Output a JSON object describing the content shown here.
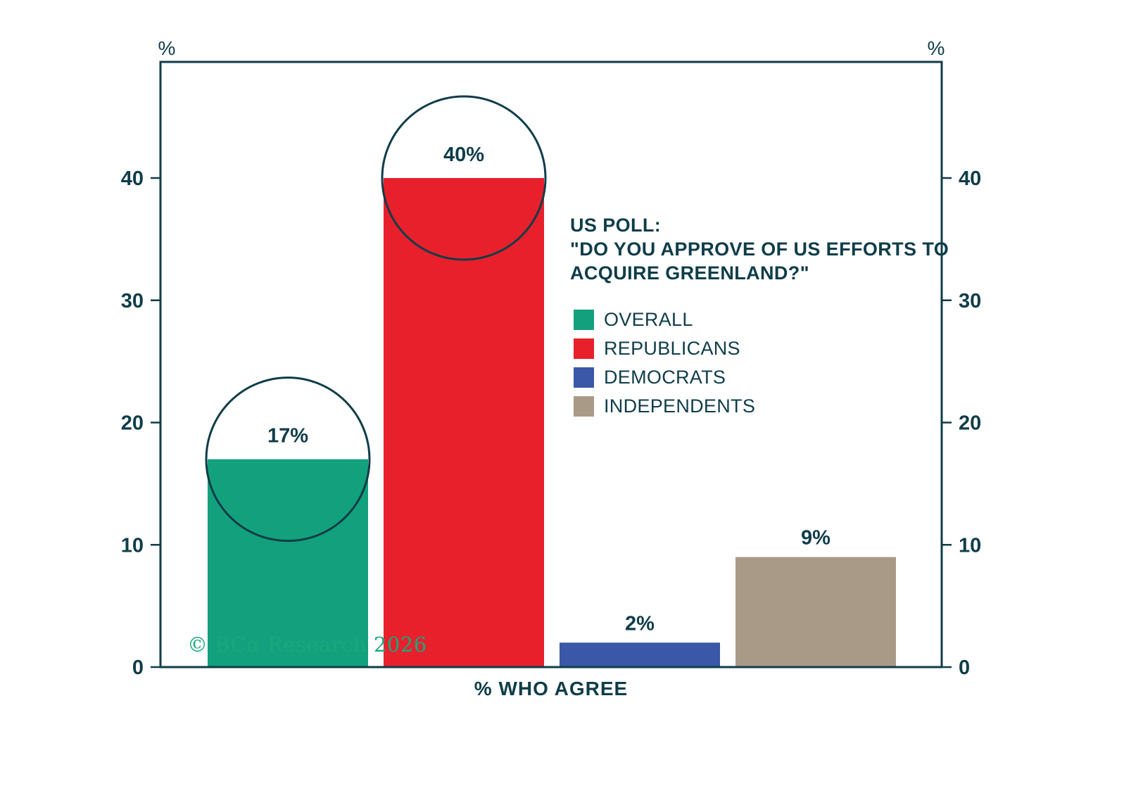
{
  "chart_data": {
    "type": "bar",
    "title_lines": [
      "US POLL:",
      "\"DO YOU APPROVE OF US EFFORTS TO",
      "ACQUIRE GREENLAND?\""
    ],
    "xlabel": "% WHO AGREE",
    "axis_unit": "%",
    "categories": [
      "OVERALL",
      "REPUBLICANS",
      "DEMOCRATS",
      "INDEPENDENTS"
    ],
    "values": [
      17,
      40,
      2,
      9
    ],
    "value_labels": [
      "17%",
      "40%",
      "2%",
      "9%"
    ],
    "colors": [
      "#13a17d",
      "#e8202c",
      "#3a57a8",
      "#a99a88"
    ],
    "circled": [
      true,
      true,
      false,
      false
    ],
    "yticks": [
      0,
      10,
      20,
      30,
      40
    ],
    "ylim": [
      0,
      49.5
    ],
    "grid": false,
    "legend_position": "inside-right",
    "frame_color": "#0f3d49",
    "copyright": "© BCα Research 2026",
    "copyright_color": "#18a87c"
  }
}
